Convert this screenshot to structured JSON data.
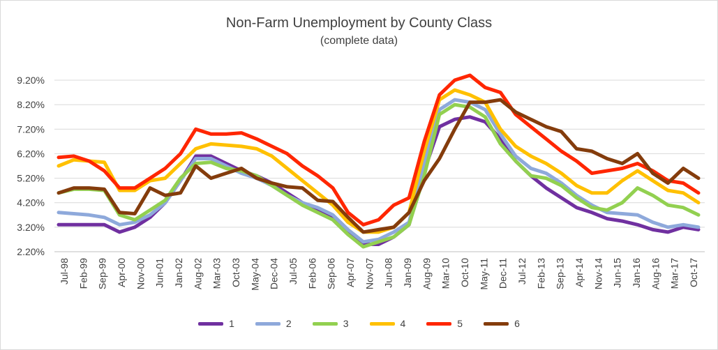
{
  "chart_data": {
    "type": "line",
    "title": "Non-Farm Unemployment by County Class",
    "subtitle": "(complete data)",
    "x_tick_labels": [
      "Jul-98",
      "Feb-99",
      "Sep-99",
      "Apr-00",
      "Nov-00",
      "Jun-01",
      "Jan-02",
      "Aug-02",
      "Mar-03",
      "Oct-03",
      "May-04",
      "Dec-04",
      "Jul-05",
      "Feb-06",
      "Sep-06",
      "Apr-07",
      "Nov-07",
      "Jun-08",
      "Jan-09",
      "Aug-09",
      "Mar-10",
      "Oct-10",
      "May-11",
      "Dec-11",
      "Jul-12",
      "Feb-13",
      "Sep-13",
      "Apr-14",
      "Nov-14",
      "Jun-15",
      "Jan-16",
      "Aug-16",
      "Mar-17",
      "Oct-17"
    ],
    "y_tick_labels": [
      "2.20%",
      "3.20%",
      "4.20%",
      "5.20%",
      "6.20%",
      "7.20%",
      "8.20%",
      "9.20%"
    ],
    "ylim": [
      2.2,
      9.2
    ],
    "grid": true,
    "legend_position": "bottom",
    "series": [
      {
        "name": "1",
        "color": "#7030A0",
        "values": [
          3.3,
          3.3,
          3.3,
          3.3,
          3.0,
          3.2,
          3.6,
          4.2,
          5.1,
          6.1,
          6.1,
          5.8,
          5.5,
          5.3,
          5.0,
          4.6,
          4.2,
          3.9,
          3.6,
          3.0,
          2.5,
          2.5,
          2.8,
          3.3,
          5.5,
          7.3,
          7.6,
          7.7,
          7.5,
          6.8,
          5.9,
          5.3,
          4.8,
          4.4,
          4.0,
          3.8,
          3.55,
          3.45,
          3.3,
          3.1,
          3.0,
          3.2,
          3.1
        ]
      },
      {
        "name": "2",
        "color": "#8EA9DB",
        "values": [
          3.8,
          3.75,
          3.7,
          3.6,
          3.3,
          3.4,
          3.7,
          4.2,
          5.1,
          6.0,
          6.0,
          5.7,
          5.4,
          5.2,
          4.9,
          4.5,
          4.2,
          4.0,
          3.7,
          3.1,
          2.6,
          2.7,
          3.0,
          3.4,
          5.8,
          8.0,
          8.4,
          8.3,
          8.0,
          7.0,
          6.1,
          5.6,
          5.4,
          5.0,
          4.5,
          4.1,
          3.8,
          3.75,
          3.7,
          3.4,
          3.2,
          3.3,
          3.2
        ]
      },
      {
        "name": "3",
        "color": "#92D050",
        "values": [
          4.6,
          4.75,
          4.75,
          4.7,
          3.7,
          3.5,
          3.9,
          4.3,
          5.2,
          5.8,
          5.85,
          5.6,
          5.5,
          5.3,
          4.9,
          4.5,
          4.1,
          3.8,
          3.5,
          2.9,
          2.4,
          2.6,
          2.8,
          3.3,
          5.3,
          7.8,
          8.2,
          8.1,
          7.7,
          6.6,
          5.9,
          5.3,
          5.2,
          4.9,
          4.4,
          4.0,
          3.9,
          4.2,
          4.8,
          4.5,
          4.1,
          4.0,
          3.7
        ]
      },
      {
        "name": "4",
        "color": "#FFC000",
        "values": [
          5.7,
          5.95,
          5.9,
          5.85,
          4.7,
          4.7,
          5.1,
          5.2,
          5.8,
          6.4,
          6.6,
          6.55,
          6.5,
          6.4,
          6.1,
          5.6,
          5.1,
          4.6,
          4.1,
          3.4,
          3.0,
          3.0,
          3.2,
          3.8,
          6.3,
          8.4,
          8.8,
          8.6,
          8.3,
          7.2,
          6.5,
          6.1,
          5.8,
          5.4,
          4.9,
          4.6,
          4.6,
          5.1,
          5.5,
          5.1,
          4.7,
          4.6,
          4.2
        ]
      },
      {
        "name": "5",
        "color": "#FF2600",
        "values": [
          6.05,
          6.1,
          5.9,
          5.5,
          4.8,
          4.8,
          5.2,
          5.6,
          6.2,
          7.2,
          7.0,
          7.0,
          7.05,
          6.8,
          6.5,
          6.2,
          5.7,
          5.3,
          4.8,
          3.8,
          3.3,
          3.5,
          4.1,
          4.4,
          6.7,
          8.6,
          9.2,
          9.4,
          8.9,
          8.7,
          7.8,
          7.3,
          6.8,
          6.3,
          5.9,
          5.4,
          5.5,
          5.6,
          5.8,
          5.5,
          5.1,
          5.0,
          4.6
        ]
      },
      {
        "name": "6",
        "color": "#843C0C",
        "values": [
          4.6,
          4.8,
          4.8,
          4.75,
          3.8,
          3.75,
          4.8,
          4.5,
          4.6,
          5.7,
          5.2,
          5.4,
          5.6,
          5.2,
          5.0,
          4.85,
          4.8,
          4.3,
          4.25,
          3.6,
          3.0,
          3.1,
          3.2,
          3.8,
          5.1,
          6.0,
          7.2,
          8.3,
          8.3,
          8.4,
          7.9,
          7.6,
          7.3,
          7.1,
          6.4,
          6.3,
          6.0,
          5.8,
          6.2,
          5.4,
          5.0,
          5.6,
          5.2
        ]
      }
    ]
  }
}
